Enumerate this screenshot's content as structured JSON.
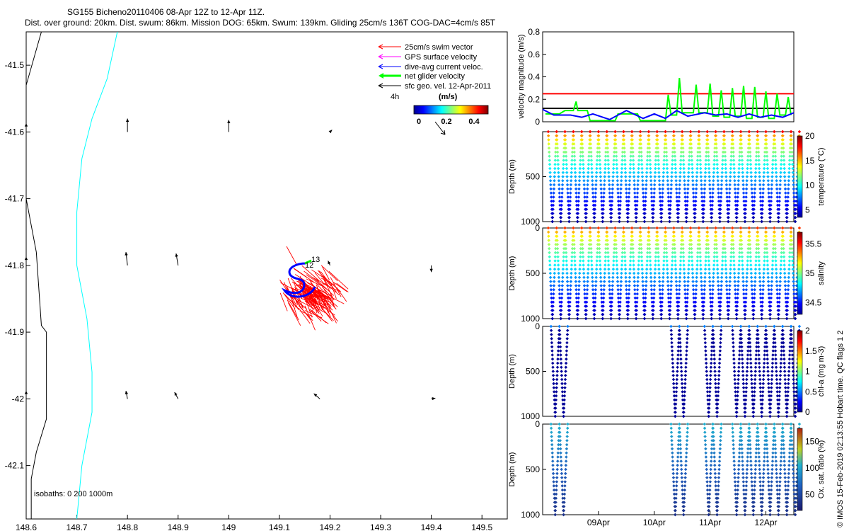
{
  "header": {
    "title_line1": "SG155 Bicheno20110406 08-Apr 12Z to 12-Apr 11Z.",
    "title_line2": "Dist. over ground: 20km. Dist. swum: 86km. Mission DOG: 65km. Swum: 139km. Gliding 25cm/s 136T COG-DAC=4cm/s 85T"
  },
  "footer": {
    "copyright": "© IMOS 15-Feb-2019 02:13:55 Hobart time. QC flags 1  2"
  },
  "colors": {
    "swim_vector": "#ff0000",
    "gps_surface": "#ff00ff",
    "dive_avg": "#0000ff",
    "net_glider": "#00ff00",
    "sfc_geo": "#000000",
    "isobath_0": "#000000",
    "isobath_200": "#00ffff"
  },
  "chart_data": [
    {
      "type": "scatter",
      "xlim": [
        148.6,
        149.55
      ],
      "ylim": [
        -42.18,
        -41.45
      ],
      "x_ticks": [
        "148.6",
        "148.7",
        "148.8",
        "148.9",
        "149",
        "149.1",
        "149.2",
        "149.3",
        "149.4",
        "149.5"
      ],
      "y_ticks": [
        "-41.5",
        "-41.6",
        "-41.7",
        "-41.8",
        "-41.9",
        "-42",
        "-42.1"
      ],
      "legend": {
        "placement": "top-right",
        "entries": [
          "25cm/s swim vector",
          "GPS surface velocity",
          "dive-avg current veloc.",
          "net glider velocity",
          "sfc geo. vel. 12-Apr-2011"
        ],
        "time_scale_label": "4h",
        "colorbar_title": "(m/s)",
        "colorbar_ticks": [
          "0",
          "0.2",
          "0.4"
        ]
      },
      "isobath_label": "isobaths: 0   200   1000m",
      "track_labels": [
        "12",
        "13"
      ],
      "isobath_0m": [
        [
          148.63,
          -41.45
        ],
        [
          148.6,
          -41.53
        ],
        [
          148.6,
          -41.7
        ],
        [
          148.62,
          -41.78
        ],
        [
          148.63,
          -41.89
        ],
        [
          148.64,
          -41.9
        ],
        [
          148.64,
          -42.03
        ],
        [
          148.62,
          -42.08
        ],
        [
          148.61,
          -42.12
        ],
        [
          148.61,
          -42.18
        ]
      ],
      "isobath_200m": [
        [
          148.78,
          -41.45
        ],
        [
          148.76,
          -41.52
        ],
        [
          148.73,
          -41.58
        ],
        [
          148.71,
          -41.64
        ],
        [
          148.7,
          -41.72
        ],
        [
          148.7,
          -41.8
        ],
        [
          148.72,
          -41.88
        ],
        [
          148.73,
          -41.96
        ],
        [
          148.73,
          -42.02
        ],
        [
          148.71,
          -42.1
        ],
        [
          148.7,
          -42.18
        ]
      ],
      "geo_vectors": [
        [
          148.6,
          -41.6,
          0,
          0.013
        ],
        [
          148.8,
          -41.6,
          0,
          0.02
        ],
        [
          149,
          -41.6,
          0,
          0.018
        ],
        [
          149.2,
          -41.6,
          0.004,
          0.003
        ],
        [
          148.6,
          -41.8,
          0,
          0.013
        ],
        [
          148.8,
          -41.8,
          -0.003,
          0.02
        ],
        [
          148.9,
          -41.8,
          -0.004,
          0.018
        ],
        [
          149.2,
          -41.8,
          -0.004,
          0.007
        ],
        [
          149.4,
          -41.8,
          0,
          -0.01
        ],
        [
          148.6,
          -42,
          0,
          0.012
        ],
        [
          148.8,
          -42,
          -0.003,
          0.012
        ],
        [
          148.9,
          -42,
          -0.007,
          0.01
        ],
        [
          149.18,
          -42,
          -0.012,
          0.008
        ],
        [
          149.4,
          -42,
          0.008,
          0.001
        ]
      ]
    },
    {
      "type": "line",
      "xlim": [
        8.0,
        12.5
      ],
      "ylim": [
        0,
        0.8
      ],
      "ylabel": "velocity magnitude (m/s)",
      "y_ticks": [
        "0",
        "0.2",
        "0.4",
        "0.6",
        "0.8"
      ],
      "reference_levels": [
        {
          "value": 0.25,
          "color": "#ff0000"
        },
        {
          "value": 0.12,
          "color": "#000000"
        }
      ],
      "series": [
        {
          "color": "#00ff00",
          "values": [
            [
              8.05,
              0.07
            ],
            [
              8.3,
              0.07
            ],
            [
              8.4,
              0.1
            ],
            [
              8.55,
              0.1
            ],
            [
              8.6,
              0.18
            ],
            [
              8.63,
              0.1
            ],
            [
              8.8,
              0.1
            ],
            [
              8.85,
              0.01
            ],
            [
              9.3,
              0.01
            ],
            [
              9.35,
              0.07
            ],
            [
              9.7,
              0.07
            ],
            [
              9.75,
              0.01
            ],
            [
              10.2,
              0.01
            ],
            [
              10.25,
              0.24
            ],
            [
              10.3,
              0.06
            ],
            [
              10.4,
              0.06
            ],
            [
              10.45,
              0.39
            ],
            [
              10.5,
              0.08
            ],
            [
              10.7,
              0.08
            ],
            [
              10.75,
              0.33
            ],
            [
              10.8,
              0.08
            ],
            [
              10.95,
              0.08
            ],
            [
              11.0,
              0.34
            ],
            [
              11.05,
              0.05
            ],
            [
              11.15,
              0.05
            ],
            [
              11.2,
              0.28
            ],
            [
              11.25,
              0.04
            ],
            [
              11.35,
              0.04
            ],
            [
              11.4,
              0.3
            ],
            [
              11.45,
              0.05
            ],
            [
              11.55,
              0.05
            ],
            [
              11.6,
              0.32
            ],
            [
              11.65,
              0.03
            ],
            [
              11.75,
              0.03
            ],
            [
              11.8,
              0.31
            ],
            [
              11.85,
              0.04
            ],
            [
              11.95,
              0.04
            ],
            [
              12.0,
              0.27
            ],
            [
              12.05,
              0.03
            ],
            [
              12.15,
              0.03
            ],
            [
              12.2,
              0.25
            ],
            [
              12.25,
              0.06
            ],
            [
              12.35,
              0.06
            ],
            [
              12.4,
              0.22
            ],
            [
              12.45,
              0.06
            ]
          ]
        },
        {
          "color": "#0000ff",
          "values": [
            [
              8.0,
              0.11
            ],
            [
              8.2,
              0.06
            ],
            [
              8.5,
              0.06
            ],
            [
              8.7,
              0.04
            ],
            [
              8.9,
              0.07
            ],
            [
              9.2,
              0.02
            ],
            [
              9.5,
              0.1
            ],
            [
              9.8,
              0.03
            ],
            [
              10.0,
              0.07
            ],
            [
              10.2,
              0.03
            ],
            [
              10.4,
              0.1
            ],
            [
              10.6,
              0.05
            ],
            [
              10.9,
              0.08
            ],
            [
              11.1,
              0.06
            ],
            [
              11.3,
              0.07
            ],
            [
              11.5,
              0.04
            ],
            [
              11.7,
              0.07
            ],
            [
              11.9,
              0.04
            ],
            [
              12.1,
              0.06
            ],
            [
              12.3,
              0.04
            ],
            [
              12.5,
              0.08
            ]
          ]
        }
      ]
    },
    {
      "type": "scatter",
      "ylabel": "Depth (m)",
      "y_ticks": [
        "500",
        "1000"
      ],
      "colorbar_label": "temperature (°C)",
      "colorbar_ticks": [
        "5",
        "10",
        "15",
        "20"
      ],
      "clim": [
        3.5,
        20
      ],
      "surface_value": 18,
      "dives": [
        8.1,
        8.25,
        8.4,
        8.55,
        8.7,
        8.85,
        9.0,
        9.15,
        9.3,
        9.45,
        9.6,
        9.75,
        9.9,
        10.05,
        10.2,
        10.35,
        10.5,
        10.65,
        10.8,
        10.95,
        11.1,
        11.25,
        11.4,
        11.55,
        11.7,
        11.85,
        12.0,
        12.15,
        12.3,
        12.45
      ]
    },
    {
      "type": "scatter",
      "ylabel": "Depth (m)",
      "y_ticks": [
        "0",
        "500",
        "1000"
      ],
      "colorbar_label": "salinity",
      "colorbar_ticks": [
        "34.5",
        "35",
        "35.5"
      ],
      "clim": [
        34.3,
        35.7
      ],
      "surface_value": 35.45,
      "dives": [
        8.1,
        8.25,
        8.4,
        8.55,
        8.7,
        8.85,
        9.0,
        9.15,
        9.3,
        9.45,
        9.6,
        9.75,
        9.9,
        10.05,
        10.2,
        10.35,
        10.5,
        10.65,
        10.8,
        10.95,
        11.1,
        11.25,
        11.4,
        11.55,
        11.7,
        11.85,
        12.0,
        12.15,
        12.3,
        12.45
      ]
    },
    {
      "type": "scatter",
      "ylabel": "Depth (m)",
      "y_ticks": [
        "0",
        "500",
        "1000"
      ],
      "colorbar_label": "chl-a (mg m-3)",
      "colorbar_ticks": [
        "0",
        "0.5",
        "1",
        "1.5",
        "2"
      ],
      "clim": [
        0,
        2
      ],
      "surface_value": 0.3,
      "dives": [
        8.15,
        8.3,
        10.3,
        10.45,
        10.9,
        11.05,
        11.4,
        11.55,
        11.7,
        11.85,
        12.0,
        12.15,
        12.3,
        12.45
      ]
    },
    {
      "type": "scatter",
      "ylabel": "Depth (m)",
      "y_ticks": [
        "0",
        "500",
        "1000"
      ],
      "x_ticks": [
        "09Apr",
        "10Apr",
        "11Apr",
        "12Apr"
      ],
      "colorbar_label": "Ox. sat. ratio (%)",
      "colorbar_ticks": [
        "50",
        "100",
        "150"
      ],
      "clim": [
        20,
        175
      ],
      "surface_value": 105,
      "dives": [
        8.15,
        8.3,
        10.3,
        10.45,
        10.9,
        11.05,
        11.4,
        11.55,
        11.7,
        11.85,
        12.0,
        12.15,
        12.3,
        12.45
      ]
    }
  ]
}
